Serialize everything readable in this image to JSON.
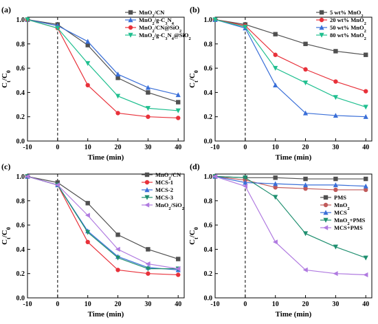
{
  "chart_data": [
    {
      "type": "line",
      "panel_label": "(a)",
      "xlabel": "Time (min)",
      "ylabel": "C_t/C_0",
      "x": [
        -10,
        0,
        10,
        20,
        30,
        40
      ],
      "xticks": [
        -10,
        0,
        10,
        20,
        30,
        40
      ],
      "yticks": [
        0.0,
        0.2,
        0.4,
        0.6,
        0.8,
        1.0
      ],
      "xlim": [
        -10,
        42
      ],
      "ylim": [
        0,
        1.02
      ],
      "dashed_vline_x": 0,
      "legend_position": "top-right",
      "series": [
        {
          "name": "MnO2/CN",
          "name_parts": [
            [
              "MnO",
              ""
            ],
            [
              "2",
              "sub"
            ],
            [
              "/CN",
              ""
            ]
          ],
          "color": "#505050",
          "marker": "square",
          "values": [
            1.0,
            0.96,
            0.79,
            0.52,
            0.4,
            0.32
          ]
        },
        {
          "name": "MnO2/g-C3N4",
          "name_parts": [
            [
              "MnO",
              ""
            ],
            [
              "2",
              "sub"
            ],
            [
              "/g-C",
              ""
            ],
            [
              "3",
              "sub"
            ],
            [
              "N",
              ""
            ],
            [
              "4",
              "sub"
            ]
          ],
          "color": "#3a6fd8",
          "marker": "triangle",
          "values": [
            1.0,
            0.95,
            0.82,
            0.55,
            0.44,
            0.38
          ]
        },
        {
          "name": "MnO2/CN@SiO2",
          "name_parts": [
            [
              "MnO",
              ""
            ],
            [
              "2",
              "sub"
            ],
            [
              "/CN@SiO",
              ""
            ],
            [
              "2",
              "sub"
            ]
          ],
          "color": "#e8313a",
          "marker": "circle",
          "values": [
            1.0,
            0.93,
            0.46,
            0.23,
            0.2,
            0.19
          ]
        },
        {
          "name": "MnO2/g-C3N4@SiO2",
          "name_parts": [
            [
              "MnO",
              ""
            ],
            [
              "2",
              "sub"
            ],
            [
              "/g-C",
              ""
            ],
            [
              "3",
              "sub"
            ],
            [
              "N",
              ""
            ],
            [
              "4",
              "sub"
            ],
            [
              "@SiO",
              ""
            ],
            [
              "2",
              "sub"
            ]
          ],
          "color": "#1fbf8f",
          "marker": "triangle-down",
          "values": [
            1.0,
            0.93,
            0.64,
            0.37,
            0.27,
            0.25
          ]
        }
      ]
    },
    {
      "type": "line",
      "panel_label": "(b)",
      "xlabel": "Time (min)",
      "ylabel": "C_t/C_0",
      "x": [
        -10,
        0,
        10,
        20,
        30,
        40
      ],
      "xticks": [
        -10,
        0,
        10,
        20,
        30,
        40
      ],
      "yticks": [
        0.0,
        0.2,
        0.4,
        0.6,
        0.8,
        1.0
      ],
      "xlim": [
        -10,
        42
      ],
      "ylim": [
        0,
        1.02
      ],
      "dashed_vline_x": 0,
      "legend_position": "top-right",
      "series": [
        {
          "name": "5 wt% MnO2",
          "name_parts": [
            [
              "5 wt% MnO",
              ""
            ],
            [
              "2",
              "sub"
            ]
          ],
          "color": "#505050",
          "marker": "square",
          "values": [
            1.0,
            0.96,
            0.88,
            0.8,
            0.74,
            0.71
          ]
        },
        {
          "name": "20 wt% MnO2",
          "name_parts": [
            [
              "20 wt% MnO",
              ""
            ],
            [
              "2",
              "sub"
            ]
          ],
          "color": "#e8313a",
          "marker": "circle",
          "values": [
            1.0,
            0.95,
            0.71,
            0.59,
            0.49,
            0.41
          ]
        },
        {
          "name": "50 wt% MnO2",
          "name_parts": [
            [
              "50 wt% MnO",
              ""
            ],
            [
              "2",
              "sub"
            ]
          ],
          "color": "#3a6fd8",
          "marker": "triangle",
          "values": [
            1.0,
            0.93,
            0.46,
            0.23,
            0.21,
            0.2
          ]
        },
        {
          "name": "80 wt% MnO2",
          "name_parts": [
            [
              "80 wt% MnO",
              ""
            ],
            [
              "2",
              "sub"
            ]
          ],
          "color": "#1fbf8f",
          "marker": "triangle-down",
          "values": [
            1.0,
            0.94,
            0.6,
            0.48,
            0.36,
            0.28
          ]
        }
      ]
    },
    {
      "type": "line",
      "panel_label": "(c)",
      "xlabel": "Time (min)",
      "ylabel": "C_t/C_0",
      "x": [
        -10,
        0,
        10,
        20,
        30,
        40
      ],
      "xticks": [
        -10,
        0,
        10,
        20,
        30,
        40
      ],
      "yticks": [
        0.0,
        0.2,
        0.4,
        0.6,
        0.8,
        1.0
      ],
      "xlim": [
        -10,
        42
      ],
      "ylim": [
        0,
        1.02
      ],
      "dashed_vline_x": 0,
      "legend_position": "top-right",
      "series": [
        {
          "name": "MnO2/CN",
          "name_parts": [
            [
              "MnO",
              ""
            ],
            [
              "2",
              "sub"
            ],
            [
              "/CN",
              ""
            ]
          ],
          "color": "#505050",
          "marker": "square",
          "values": [
            1.0,
            0.95,
            0.78,
            0.52,
            0.4,
            0.32
          ]
        },
        {
          "name": "MCS-1",
          "name_parts": [
            [
              "MCS-1",
              ""
            ]
          ],
          "color": "#e8313a",
          "marker": "circle",
          "values": [
            1.0,
            0.93,
            0.46,
            0.23,
            0.2,
            0.19
          ]
        },
        {
          "name": "MCS-2",
          "name_parts": [
            [
              "MCS-2",
              ""
            ]
          ],
          "color": "#3a6fd8",
          "marker": "triangle",
          "values": [
            1.0,
            0.93,
            0.55,
            0.34,
            0.25,
            0.23
          ]
        },
        {
          "name": "MCS-3",
          "name_parts": [
            [
              "MCS-3",
              ""
            ]
          ],
          "color": "#1f8f6f",
          "marker": "triangle-down",
          "values": [
            1.0,
            0.93,
            0.54,
            0.33,
            0.24,
            0.24
          ]
        },
        {
          "name": "MnO2/SiO2",
          "name_parts": [
            [
              "MnO",
              ""
            ],
            [
              "2",
              "sub"
            ],
            [
              "/SiO",
              ""
            ],
            [
              "2",
              "sub"
            ]
          ],
          "color": "#b07ae0",
          "marker": "triangle-left",
          "values": [
            1.0,
            0.93,
            0.68,
            0.4,
            0.28,
            0.24
          ]
        }
      ]
    },
    {
      "type": "line",
      "panel_label": "(d)",
      "xlabel": "Time (min)",
      "ylabel": "C_t/C_0",
      "x": [
        -10,
        0,
        10,
        20,
        30,
        40
      ],
      "xticks": [
        -10,
        0,
        10,
        20,
        30,
        40
      ],
      "yticks": [
        0.0,
        0.2,
        0.4,
        0.6,
        0.8,
        1.0
      ],
      "xlim": [
        -10,
        42
      ],
      "ylim": [
        0,
        1.02
      ],
      "dashed_vline_x": 0,
      "legend_position": "center-right",
      "series": [
        {
          "name": "PMS",
          "name_parts": [
            [
              "PMS",
              ""
            ]
          ],
          "color": "#505050",
          "marker": "square",
          "values": [
            1.0,
            0.99,
            0.99,
            0.98,
            0.98,
            0.98
          ]
        },
        {
          "name": "MnO2",
          "name_parts": [
            [
              "MnO",
              ""
            ],
            [
              "2",
              "sub"
            ]
          ],
          "color": "#c05a5a",
          "marker": "circle",
          "values": [
            1.0,
            0.97,
            0.91,
            0.9,
            0.89,
            0.89
          ]
        },
        {
          "name": "MCS",
          "name_parts": [
            [
              "MCS",
              ""
            ]
          ],
          "color": "#3a6fd8",
          "marker": "triangle",
          "values": [
            1.0,
            0.95,
            0.94,
            0.93,
            0.93,
            0.92
          ]
        },
        {
          "name": "MnO2+PMS",
          "name_parts": [
            [
              "MnO",
              ""
            ],
            [
              "2",
              "sub"
            ],
            [
              "+PMS",
              ""
            ]
          ],
          "color": "#1f8f6f",
          "marker": "triangle-down",
          "values": [
            1.0,
            0.99,
            0.83,
            0.53,
            0.42,
            0.33
          ]
        },
        {
          "name": "MCS+PMS",
          "name_parts": [
            [
              "MCS+PMS",
              ""
            ]
          ],
          "color": "#b07ae0",
          "marker": "triangle-left",
          "values": [
            1.0,
            0.92,
            0.46,
            0.23,
            0.2,
            0.19
          ]
        }
      ]
    }
  ]
}
